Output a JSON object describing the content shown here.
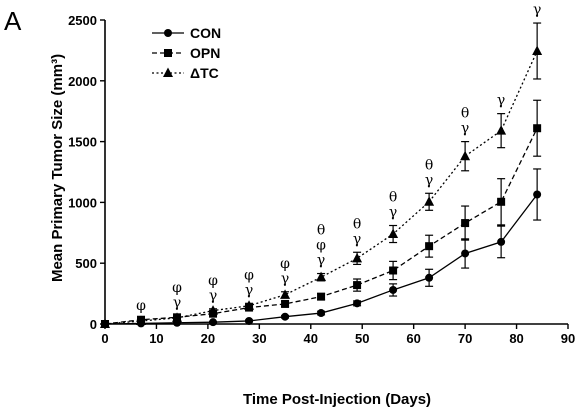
{
  "panel_label": "A",
  "chart_data": {
    "type": "line",
    "xlabel": "Time Post-Injection (Days)",
    "ylabel": "Mean Primary Tumor Size (mm³)",
    "xlim": [
      0,
      90
    ],
    "ylim": [
      0,
      2500
    ],
    "xticks": [
      0,
      10,
      20,
      30,
      40,
      50,
      60,
      70,
      80,
      90
    ],
    "yticks": [
      0,
      500,
      1000,
      1500,
      2000,
      2500
    ],
    "legend_position": "top-left",
    "x": [
      0,
      7,
      14,
      21,
      28,
      35,
      42,
      49,
      56,
      63,
      70,
      77,
      84
    ],
    "series": [
      {
        "name": "CON",
        "marker": "circle",
        "line_style": "solid",
        "values": [
          0,
          5,
          10,
          15,
          25,
          60,
          90,
          170,
          280,
          380,
          580,
          675,
          1065
        ],
        "errors": [
          0,
          3,
          5,
          5,
          8,
          10,
          15,
          20,
          50,
          70,
          120,
          130,
          210
        ]
      },
      {
        "name": "OPN",
        "marker": "square",
        "line_style": "dashed",
        "values": [
          0,
          35,
          55,
          85,
          135,
          165,
          225,
          320,
          440,
          640,
          830,
          1005,
          1610
        ],
        "errors": [
          0,
          8,
          10,
          15,
          20,
          20,
          25,
          50,
          75,
          90,
          140,
          190,
          230
        ]
      },
      {
        "name": "ΔTC",
        "marker": "triangle",
        "line_style": "dotted",
        "values": [
          0,
          25,
          50,
          110,
          150,
          240,
          385,
          540,
          740,
          1005,
          1380,
          1590,
          2245
        ],
        "errors": [
          0,
          8,
          10,
          15,
          20,
          25,
          30,
          50,
          70,
          70,
          120,
          140,
          230
        ]
      }
    ],
    "significance": [
      {
        "x": 7,
        "symbols": [
          "φ"
        ]
      },
      {
        "x": 14,
        "symbols": [
          "φ",
          "γ"
        ]
      },
      {
        "x": 21,
        "symbols": [
          "φ",
          "γ"
        ]
      },
      {
        "x": 28,
        "symbols": [
          "φ",
          "γ"
        ]
      },
      {
        "x": 35,
        "symbols": [
          "φ",
          "γ"
        ]
      },
      {
        "x": 42,
        "symbols": [
          "θ",
          "φ",
          "γ"
        ]
      },
      {
        "x": 49,
        "symbols": [
          "θ",
          "γ"
        ]
      },
      {
        "x": 56,
        "symbols": [
          "θ",
          "γ"
        ]
      },
      {
        "x": 63,
        "symbols": [
          "θ",
          "γ"
        ]
      },
      {
        "x": 70,
        "symbols": [
          "θ",
          "γ"
        ]
      },
      {
        "x": 77,
        "symbols": [
          "γ"
        ]
      },
      {
        "x": 84,
        "symbols": [
          "γ"
        ]
      }
    ]
  }
}
